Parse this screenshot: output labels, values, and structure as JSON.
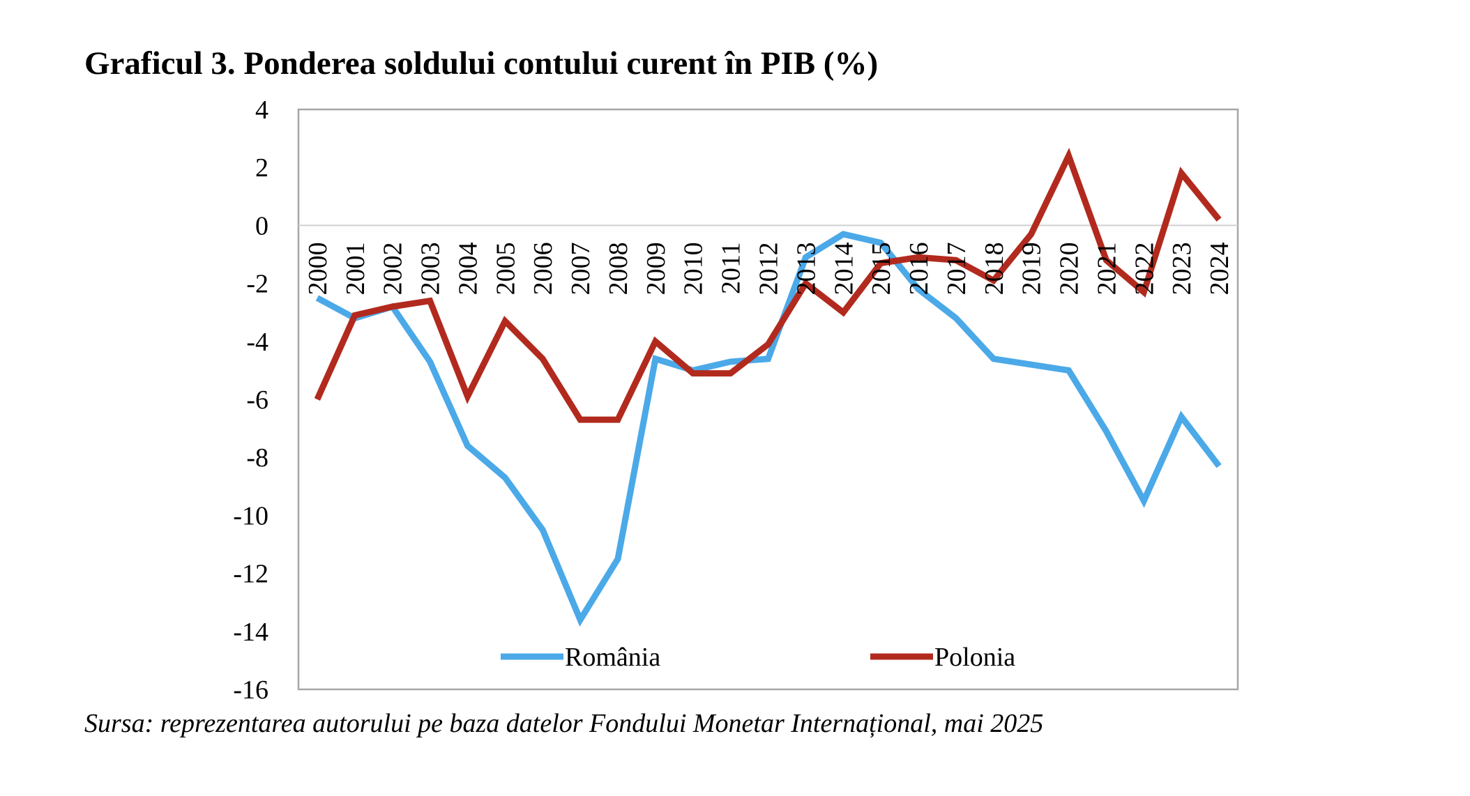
{
  "title": "Graficul 3. Ponderea soldului contului curent în PIB (%)",
  "source": "Sursa: reprezentarea autorului pe baza datelor Fondului Monetar Internațional, mai 2025",
  "chart_data": {
    "type": "line",
    "title": "Graficul 3. Ponderea soldului contului curent în PIB (%)",
    "xlabel": "",
    "ylabel": "",
    "ylim": [
      -16,
      4
    ],
    "yticks": [
      4,
      2,
      0,
      -2,
      -4,
      -6,
      -8,
      -10,
      -12,
      -14,
      -16
    ],
    "grid": false,
    "legend": "bottom-inside",
    "categories": [
      "2000",
      "2001",
      "2002",
      "2003",
      "2004",
      "2005",
      "2006",
      "2007",
      "2008",
      "2009",
      "2010",
      "2011",
      "2012",
      "2013",
      "2014",
      "2015",
      "2016",
      "2017",
      "2018",
      "2019",
      "2020",
      "2021",
      "2022",
      "2023",
      "2024"
    ],
    "series": [
      {
        "name": "România",
        "color": "#4BA9E8",
        "values": [
          -2.5,
          -3.2,
          -2.8,
          -4.7,
          -7.6,
          -8.7,
          -10.5,
          -13.6,
          -11.5,
          -4.6,
          -5.0,
          -4.7,
          -4.6,
          -1.1,
          -0.3,
          -0.6,
          -2.2,
          -3.2,
          -4.6,
          -4.8,
          -5.0,
          -7.1,
          -9.5,
          -6.6,
          -8.3
        ]
      },
      {
        "name": "Polonia",
        "color": "#B22A1E",
        "values": [
          -6.0,
          -3.1,
          -2.8,
          -2.6,
          -5.9,
          -3.3,
          -4.6,
          -6.7,
          -6.7,
          -4.0,
          -5.1,
          -5.1,
          -4.1,
          -2.0,
          -3.0,
          -1.3,
          -1.1,
          -1.2,
          -1.9,
          -0.3,
          2.4,
          -1.2,
          -2.3,
          1.8,
          0.2
        ]
      }
    ]
  }
}
